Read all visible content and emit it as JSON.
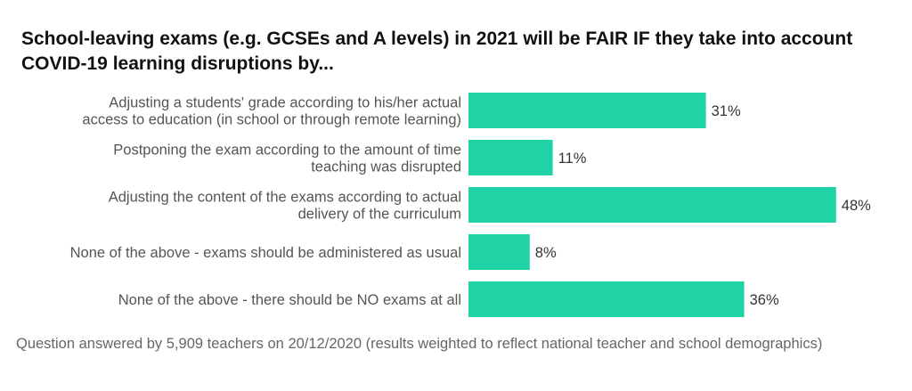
{
  "chart_data": {
    "type": "bar",
    "orientation": "horizontal",
    "title": "School-leaving exams (e.g. GCSEs and A levels) in 2021 will be FAIR IF they take into account COVID-19 learning disruptions by...",
    "categories": [
      [
        "Adjusting a students' grade according to his/her actual",
        "access to education (in school or through remote learning)"
      ],
      [
        "Postponing the exam according to the amount of time",
        "teaching was disrupted"
      ],
      [
        "Adjusting the content of the exams according to actual",
        "delivery of the curriculum"
      ],
      [
        "None of the above - exams should be administered as usual"
      ],
      [
        "None of the above - there should be NO exams at all"
      ]
    ],
    "values": [
      31,
      11,
      48,
      8,
      36
    ],
    "value_labels": [
      "31%",
      "11%",
      "48%",
      "8%",
      "36%"
    ],
    "unit": "%",
    "bar_color": "#1fd3a6",
    "grid": false,
    "legend": "none",
    "footnote": "Question answered by 5,909 teachers on 20/12/2020 (results weighted to reflect national teacher and school demographics)"
  }
}
